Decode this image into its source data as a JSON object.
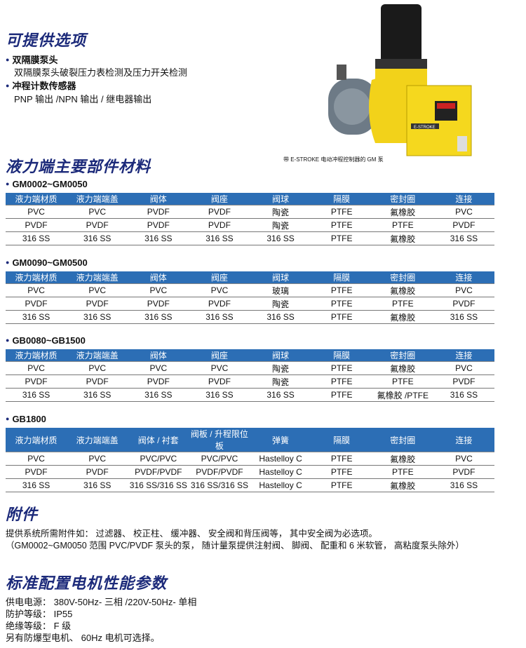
{
  "options": {
    "title": "可提供选项",
    "items": [
      {
        "head": "双隔膜泵头",
        "desc": "双隔膜泵头破裂压力表检测及压力开关检测"
      },
      {
        "head": "冲程计数传感器",
        "desc": "PNP 输出 /NPN 输出 / 继电器输出"
      }
    ]
  },
  "image": {
    "caption": "带 E-STROKE 电动冲程控制器的 GM 泵",
    "logo_text": "E-STROKE",
    "colors": {
      "body": "#f2d21a",
      "motor": "#1a1a1a",
      "head": "#6d7a86"
    }
  },
  "materials": {
    "title": "液力端主要部件材料",
    "header_color": "#2c6eb5",
    "tables": [
      {
        "model": "GM0002~GM0050",
        "headers": [
          "液力端材质",
          "液力端端盖",
          "阀体",
          "阀座",
          "阀球",
          "隔膜",
          "密封圈",
          "连接"
        ],
        "rows": [
          [
            "PVC",
            "PVC",
            "PVDF",
            "PVDF",
            "陶瓷",
            "PTFE",
            "氟橡胶",
            "PVC"
          ],
          [
            "PVDF",
            "PVDF",
            "PVDF",
            "PVDF",
            "陶瓷",
            "PTFE",
            "PTFE",
            "PVDF"
          ],
          [
            "316 SS",
            "316 SS",
            "316 SS",
            "316 SS",
            "316 SS",
            "PTFE",
            "氟橡胶",
            "316 SS"
          ]
        ]
      },
      {
        "model": "GM0090~GM0500",
        "headers": [
          "液力端材质",
          "液力端端盖",
          "阀体",
          "阀座",
          "阀球",
          "隔膜",
          "密封圈",
          "连接"
        ],
        "rows": [
          [
            "PVC",
            "PVC",
            "PVC",
            "PVC",
            "玻璃",
            "PTFE",
            "氟橡胶",
            "PVC"
          ],
          [
            "PVDF",
            "PVDF",
            "PVDF",
            "PVDF",
            "陶瓷",
            "PTFE",
            "PTFE",
            "PVDF"
          ],
          [
            "316 SS",
            "316 SS",
            "316 SS",
            "316 SS",
            "316 SS",
            "PTFE",
            "氟橡胶",
            "316 SS"
          ]
        ]
      },
      {
        "model": "GB0080~GB1500",
        "headers": [
          "液力端材质",
          "液力端端盖",
          "阀体",
          "阀座",
          "阀球",
          "隔膜",
          "密封圈",
          "连接"
        ],
        "rows": [
          [
            "PVC",
            "PVC",
            "PVC",
            "PVC",
            "陶瓷",
            "PTFE",
            "氟橡胶",
            "PVC"
          ],
          [
            "PVDF",
            "PVDF",
            "PVDF",
            "PVDF",
            "陶瓷",
            "PTFE",
            "PTFE",
            "PVDF"
          ],
          [
            "316 SS",
            "316 SS",
            "316 SS",
            "316 SS",
            "316 SS",
            "PTFE",
            "氟橡胶 /PTFE",
            "316 SS"
          ]
        ]
      },
      {
        "model": "GB1800",
        "headers": [
          "液力端材质",
          "液力端端盖",
          "阀体 / 衬套",
          "阀板 / 升程限位板",
          "弹簧",
          "隔膜",
          "密封圈",
          "连接"
        ],
        "rows": [
          [
            "PVC",
            "PVC",
            "PVC/PVC",
            "PVC/PVC",
            "Hastelloy C",
            "PTFE",
            "氟橡胶",
            "PVC"
          ],
          [
            "PVDF",
            "PVDF",
            "PVDF/PVDF",
            "PVDF/PVDF",
            "Hastelloy C",
            "PTFE",
            "PTFE",
            "PVDF"
          ],
          [
            "316 SS",
            "316 SS",
            "316 SS/316 SS",
            "316 SS/316 SS",
            "Hastelloy C",
            "PTFE",
            "氟橡胶",
            "316 SS"
          ]
        ]
      }
    ]
  },
  "accessories": {
    "title": "附件",
    "line1": "提供系统所需附件如： 过滤器、 校正柱、 缓冲器、 安全阀和背压阀等， 其中安全阀为必选项。",
    "line2": "（GM0002~GM0050 范围 PVC/PVDF 泵头的泵， 随计量泵提供注射阀、 脚阀、 配重和 6 米软管， 高粘度泵头除外）"
  },
  "motor": {
    "title": "标准配置电机性能参数",
    "lines": [
      "供电电源： 380V-50Hz- 三相 /220V-50Hz- 单相",
      "防护等级： IP55",
      "绝缘等级： F 级",
      "另有防爆型电机、 60Hz 电机可选择。"
    ]
  }
}
